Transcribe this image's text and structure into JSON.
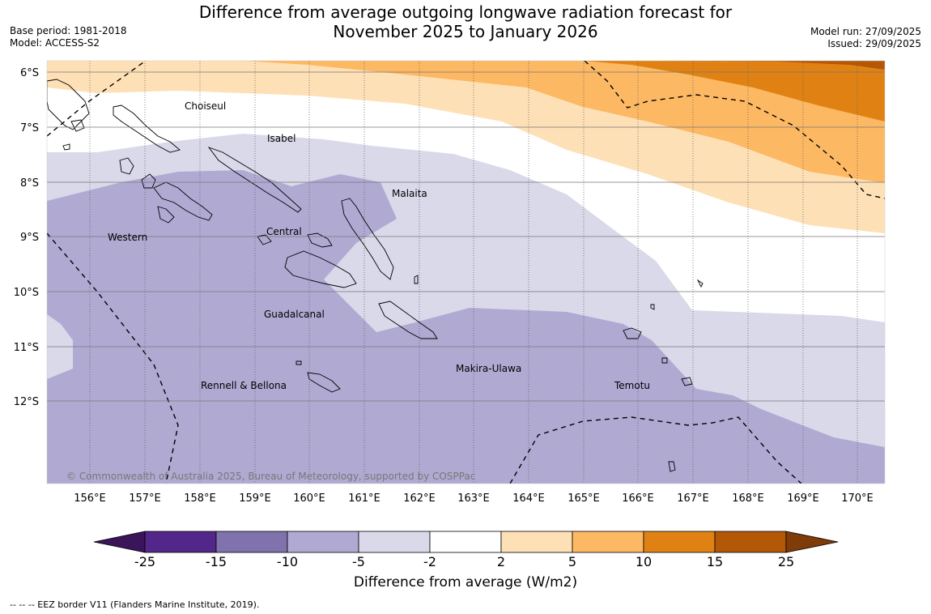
{
  "title": {
    "line1": "Difference from average outgoing longwave radiation forecast for",
    "line2": "November 2025 to January 2026"
  },
  "meta": {
    "base_period": "Base period: 1981-2018",
    "model": "Model: ACCESS-S2",
    "model_run": "Model run: 27/09/2025",
    "issued": "Issued: 29/09/2025"
  },
  "latitude_labels": [
    "6°S",
    "7°S",
    "8°S",
    "9°S",
    "10°S",
    "11°S",
    "12°S"
  ],
  "longitude_labels": [
    "156°E",
    "157°E",
    "158°E",
    "159°E",
    "160°E",
    "161°E",
    "162°E",
    "163°E",
    "164°E",
    "165°E",
    "166°E",
    "167°E",
    "168°E",
    "169°E",
    "170°E"
  ],
  "places": [
    "Choiseul",
    "Isabel",
    "Malaita",
    "Western",
    "Central",
    "Guadalcanal",
    "Makira-Ulawa",
    "Rennell & Bellona",
    "Temotu"
  ],
  "copyright": "© Commonwealth of Australia 2025, Bureau of Meteorology, supported by COSPPac",
  "colorbar": {
    "ticks": [
      "-25",
      "-15",
      "-10",
      "-5",
      "-2",
      "2",
      "5",
      "10",
      "15",
      "25"
    ],
    "colors": [
      "#3b1559",
      "#53278a",
      "#8072ac",
      "#b0aad3",
      "#d9d9ea",
      "#ffffff",
      "#fee0b6",
      "#fdb863",
      "#e08213",
      "#b35807",
      "#7f3b08"
    ],
    "label": "Difference from average (W/m2)"
  },
  "legend_note": "--  --  -- EEZ border V11 (Flanders Marine Institute, 2019)."
}
